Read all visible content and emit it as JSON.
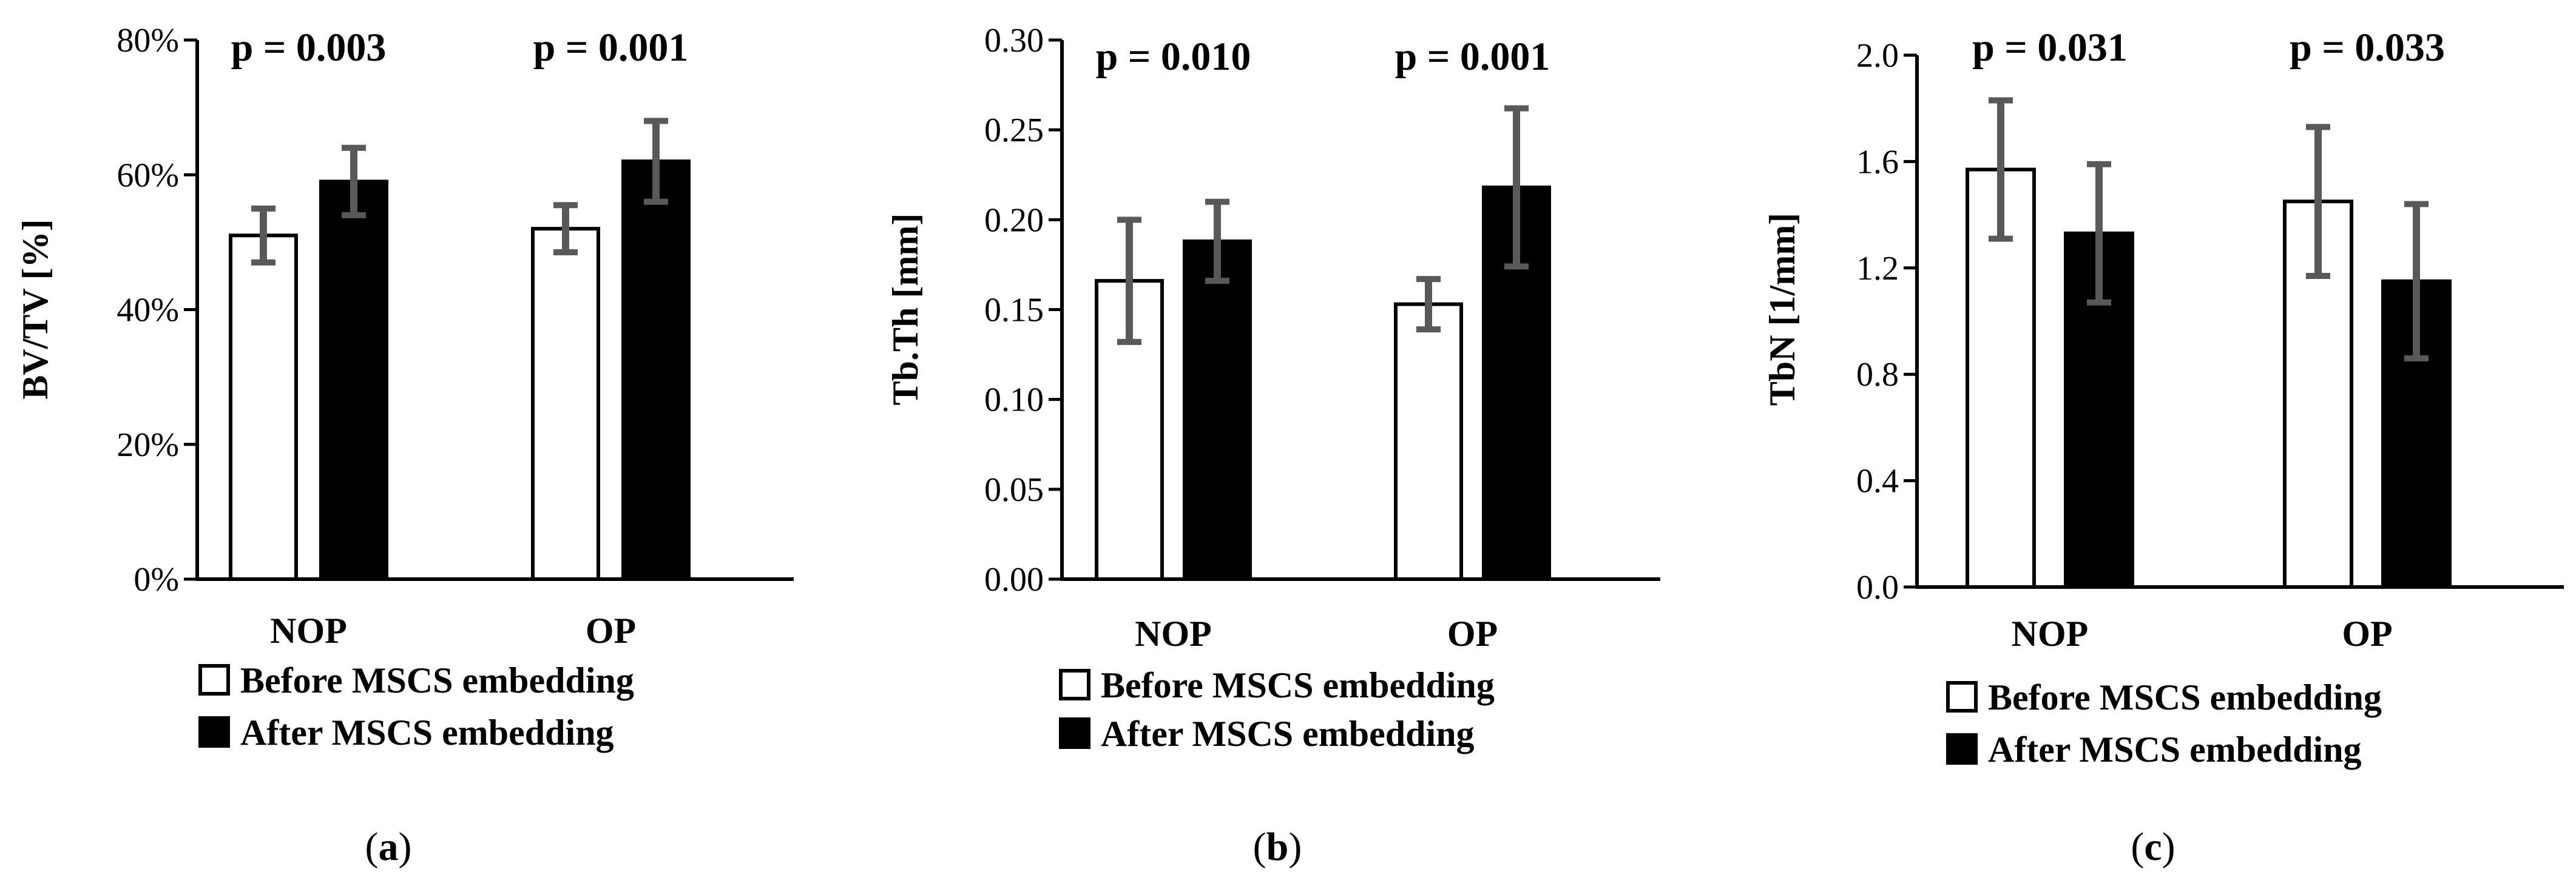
{
  "figure": {
    "series_legend": [
      "Before MSCS embedding",
      "After MSCS embedding"
    ]
  },
  "chart_data": [
    {
      "type": "bar",
      "panel_label": "a",
      "ylabel": "BV/TV [%]",
      "categories": [
        "NOP",
        "OP"
      ],
      "ylim": [
        0,
        80
      ],
      "yticks": [
        0,
        20,
        40,
        60,
        80
      ],
      "ytick_labels": [
        "0%",
        "20%",
        "40%",
        "60%",
        "80%"
      ],
      "series": [
        {
          "name": "Before MSCS embedding",
          "color": "#ffffff",
          "values": [
            51,
            52
          ],
          "errors": [
            4,
            3.5
          ]
        },
        {
          "name": "After MSCS embedding",
          "color": "#000000",
          "values": [
            59,
            62
          ],
          "errors": [
            5,
            6
          ]
        }
      ],
      "p_values": [
        "p = 0.003",
        "p = 0.001"
      ],
      "legend": "bottom"
    },
    {
      "type": "bar",
      "panel_label": "b",
      "ylabel": "Tb.Th [mm]",
      "categories": [
        "NOP",
        "OP"
      ],
      "ylim": [
        0,
        0.3
      ],
      "yticks": [
        0,
        0.05,
        0.1,
        0.15,
        0.2,
        0.25,
        0.3
      ],
      "ytick_labels": [
        "0.00",
        "0.05",
        "0.10",
        "0.15",
        "0.20",
        "0.25",
        "0.30"
      ],
      "series": [
        {
          "name": "Before MSCS embedding",
          "color": "#ffffff",
          "values": [
            0.166,
            0.153
          ],
          "errors": [
            0.034,
            0.014
          ]
        },
        {
          "name": "After MSCS embedding",
          "color": "#000000",
          "values": [
            0.188,
            0.218
          ],
          "errors": [
            0.022,
            0.044
          ]
        }
      ],
      "p_values": [
        "p = 0.010",
        "p = 0.001"
      ],
      "legend": "bottom"
    },
    {
      "type": "bar",
      "panel_label": "c",
      "ylabel": "TbN [1/mm]",
      "categories": [
        "NOP",
        "OP"
      ],
      "ylim": [
        0,
        2.0
      ],
      "yticks": [
        0,
        0.4,
        0.8,
        1.2,
        1.6,
        2.0
      ],
      "ytick_labels": [
        "0.0",
        "0.4",
        "0.8",
        "1.2",
        "1.6",
        "2.0"
      ],
      "series": [
        {
          "name": "Before MSCS embedding",
          "color": "#ffffff",
          "values": [
            1.57,
            1.45
          ],
          "errors": [
            0.26,
            0.28
          ]
        },
        {
          "name": "After MSCS embedding",
          "color": "#000000",
          "values": [
            1.33,
            1.15
          ],
          "errors": [
            0.26,
            0.29
          ]
        }
      ],
      "p_values": [
        "p = 0.031",
        "p = 0.033"
      ],
      "legend": "bottom"
    }
  ]
}
